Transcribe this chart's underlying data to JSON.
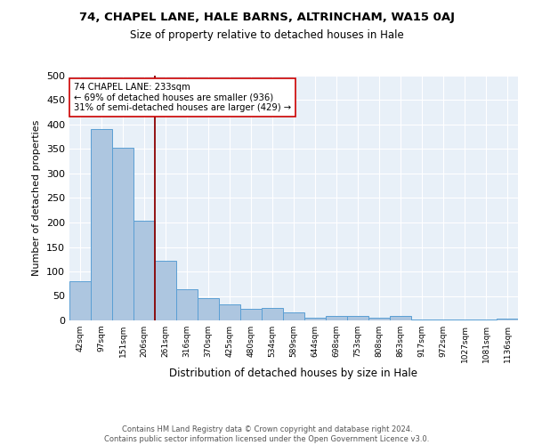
{
  "title1": "74, CHAPEL LANE, HALE BARNS, ALTRINCHAM, WA15 0AJ",
  "title2": "Size of property relative to detached houses in Hale",
  "xlabel": "Distribution of detached houses by size in Hale",
  "ylabel": "Number of detached properties",
  "footer": "Contains HM Land Registry data © Crown copyright and database right 2024.\nContains public sector information licensed under the Open Government Licence v3.0.",
  "bin_labels": [
    "42sqm",
    "97sqm",
    "151sqm",
    "206sqm",
    "261sqm",
    "316sqm",
    "370sqm",
    "425sqm",
    "480sqm",
    "534sqm",
    "589sqm",
    "644sqm",
    "698sqm",
    "753sqm",
    "808sqm",
    "863sqm",
    "917sqm",
    "972sqm",
    "1027sqm",
    "1081sqm",
    "1136sqm"
  ],
  "bar_heights": [
    80,
    390,
    352,
    203,
    122,
    63,
    45,
    32,
    23,
    25,
    16,
    5,
    10,
    9,
    5,
    9,
    2,
    1,
    1,
    1,
    4
  ],
  "bar_color": "#adc6e0",
  "bar_edge_color": "#5a9fd4",
  "bg_color": "#e8f0f8",
  "vline_x": 3.5,
  "vline_color": "#8b0000",
  "annotation_text": "74 CHAPEL LANE: 233sqm\n← 69% of detached houses are smaller (936)\n31% of semi-detached houses are larger (429) →",
  "annotation_box_color": "white",
  "annotation_box_edge": "#cc0000",
  "ylim": [
    0,
    500
  ],
  "yticks": [
    0,
    50,
    100,
    150,
    200,
    250,
    300,
    350,
    400,
    450,
    500
  ]
}
